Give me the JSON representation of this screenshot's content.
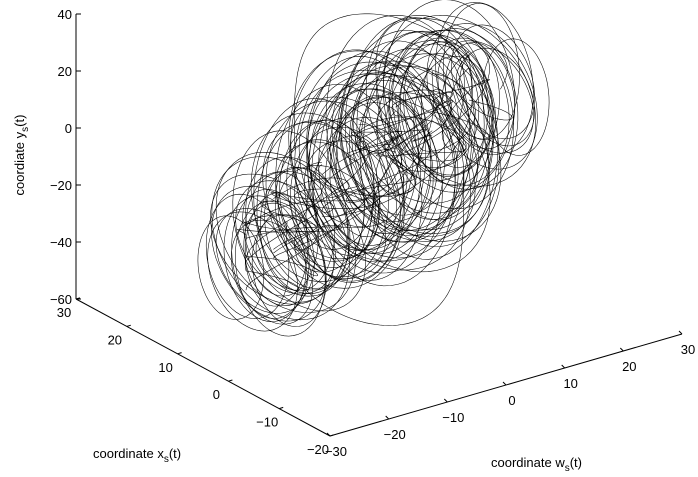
{
  "chart_data": {
    "type": "line",
    "projection": "3d",
    "grid": false,
    "legend": "none",
    "line_color": "#000000",
    "axes": {
      "w": {
        "label_main": "coordinate w",
        "label_sub": "s",
        "label_tail": "(t)",
        "range": [
          -30,
          30
        ],
        "ticks": [
          -30,
          -20,
          -10,
          0,
          10,
          20,
          30
        ],
        "tick_labels": [
          "−30",
          "−20",
          "−10",
          "0",
          "10",
          "20",
          "30"
        ]
      },
      "x": {
        "label_main": "coordinate x",
        "label_sub": "s",
        "label_tail": "(t)",
        "range": [
          -20,
          30
        ],
        "ticks": [
          -20,
          -10,
          0,
          10,
          20,
          30
        ],
        "tick_labels": [
          "−20",
          "−10",
          "0",
          "10",
          "20",
          "30"
        ]
      },
      "y": {
        "label_main": "coordiate y",
        "label_sub": "s",
        "label_tail": "(t)",
        "range": [
          -60,
          40
        ],
        "ticks": [
          -60,
          -40,
          -20,
          0,
          20,
          40
        ],
        "tick_labels": [
          "−60",
          "−40",
          "−20",
          "0",
          "20",
          "40"
        ]
      }
    },
    "series": [
      {
        "description_of_shape": "chaotic trajectory of a hyperchaotic system projected in (w, x, y) space",
        "loops": [
          {
            "cw": -27,
            "cx": -3,
            "cy": -18,
            "rw": 5,
            "rx": 6,
            "ry": 14,
            "turns": 10
          },
          {
            "cw": -18,
            "cx": 2,
            "cy": -18,
            "rw": 6,
            "rx": 7,
            "ry": 16,
            "turns": 12
          },
          {
            "cw": -8,
            "cx": 4,
            "cy": -14,
            "rw": 7,
            "rx": 7,
            "ry": 18,
            "turns": 16
          },
          {
            "cw": 0,
            "cx": 6,
            "cy": -8,
            "rw": 8,
            "rx": 8,
            "ry": 20,
            "turns": 18
          },
          {
            "cw": 8,
            "cx": 8,
            "cy": -5,
            "rw": 8,
            "rx": 8,
            "ry": 20,
            "turns": 16
          },
          {
            "cw": 16,
            "cx": 10,
            "cy": -2,
            "rw": 7,
            "rx": 7,
            "ry": 18,
            "turns": 12
          },
          {
            "cw": 24,
            "cx": 12,
            "cy": 0,
            "rw": 5,
            "rx": 6,
            "ry": 15,
            "turns": 8
          }
        ],
        "excursions": [
          {
            "w0": -10,
            "w1": 20,
            "x": 10,
            "y_top": 38
          },
          {
            "w0": 5,
            "w1": 25,
            "x": 10,
            "y_top": 30
          },
          {
            "w0": -20,
            "w1": 10,
            "x": 0,
            "y_bottom": -55
          }
        ]
      }
    ]
  }
}
